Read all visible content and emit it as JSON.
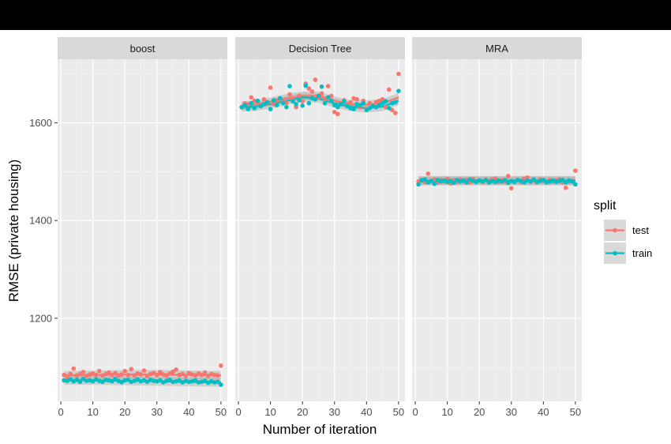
{
  "chart_data": {
    "type": "scatter",
    "xlabel": "Number of iteration",
    "ylabel": "RMSE (private housing)",
    "xlim": [
      -1,
      52
    ],
    "ylim": [
      1030,
      1730
    ],
    "x_ticks": [
      0,
      10,
      20,
      30,
      40,
      50
    ],
    "y_ticks": [
      1200,
      1400,
      1600
    ],
    "grid": true,
    "legend": {
      "title": "split",
      "position": "right",
      "entries": [
        {
          "name": "test",
          "color": "#F8766D"
        },
        {
          "name": "train",
          "color": "#00BFC4"
        }
      ]
    },
    "panels": [
      {
        "title": "boost",
        "series": [
          {
            "name": "test",
            "color": "#F8766D",
            "smooth": [
              [
                1,
                1083
              ],
              [
                10,
                1084
              ],
              [
                20,
                1085
              ],
              [
                30,
                1085
              ],
              [
                40,
                1084
              ],
              [
                50,
                1083
              ]
            ],
            "x": [
              1,
              2,
              3,
              4,
              5,
              6,
              7,
              8,
              9,
              10,
              11,
              12,
              13,
              14,
              15,
              16,
              17,
              18,
              19,
              20,
              21,
              22,
              23,
              24,
              25,
              26,
              27,
              28,
              29,
              30,
              31,
              32,
              33,
              34,
              35,
              36,
              37,
              38,
              39,
              40,
              41,
              42,
              43,
              44,
              45,
              46,
              47,
              48,
              49,
              50
            ],
            "y": [
              1084,
              1081,
              1086,
              1097,
              1083,
              1086,
              1090,
              1082,
              1085,
              1087,
              1084,
              1092,
              1083,
              1086,
              1089,
              1084,
              1088,
              1083,
              1085,
              1092,
              1084,
              1096,
              1083,
              1087,
              1085,
              1093,
              1082,
              1086,
              1088,
              1084,
              1090,
              1085,
              1083,
              1087,
              1091,
              1095,
              1084,
              1086,
              1082,
              1088,
              1085,
              1083,
              1087,
              1084,
              1089,
              1082,
              1086,
              1084,
              1083,
              1103
            ]
          },
          {
            "name": "train",
            "color": "#00BFC4",
            "smooth": [
              [
                1,
                1073
              ],
              [
                10,
                1073
              ],
              [
                20,
                1072
              ],
              [
                30,
                1071
              ],
              [
                40,
                1070
              ],
              [
                50,
                1069
              ]
            ],
            "x": [
              1,
              2,
              3,
              4,
              5,
              6,
              7,
              8,
              9,
              10,
              11,
              12,
              13,
              14,
              15,
              16,
              17,
              18,
              19,
              20,
              21,
              22,
              23,
              24,
              25,
              26,
              27,
              28,
              29,
              30,
              31,
              32,
              33,
              34,
              35,
              36,
              37,
              38,
              39,
              40,
              41,
              42,
              43,
              44,
              45,
              46,
              47,
              48,
              49,
              50
            ],
            "y": [
              1073,
              1072,
              1075,
              1071,
              1074,
              1070,
              1076,
              1072,
              1073,
              1071,
              1075,
              1072,
              1070,
              1074,
              1073,
              1071,
              1076,
              1072,
              1069,
              1073,
              1074,
              1070,
              1072,
              1075,
              1071,
              1073,
              1070,
              1074,
              1072,
              1071,
              1073,
              1069,
              1072,
              1074,
              1070,
              1071,
              1073,
              1069,
              1072,
              1070,
              1071,
              1073,
              1069,
              1070,
              1072,
              1068,
              1071,
              1069,
              1070,
              1064
            ]
          }
        ]
      },
      {
        "title": "Decision Tree",
        "series": [
          {
            "name": "test",
            "color": "#F8766D",
            "smooth": [
              [
                1,
                1635
              ],
              [
                5,
                1637
              ],
              [
                10,
                1643
              ],
              [
                15,
                1650
              ],
              [
                20,
                1655
              ],
              [
                25,
                1655
              ],
              [
                30,
                1645
              ],
              [
                35,
                1637
              ],
              [
                40,
                1637
              ],
              [
                45,
                1640
              ],
              [
                50,
                1652
              ]
            ],
            "x": [
              1,
              2,
              3,
              4,
              5,
              6,
              7,
              8,
              9,
              10,
              11,
              12,
              13,
              14,
              15,
              16,
              17,
              18,
              19,
              20,
              21,
              22,
              23,
              24,
              25,
              26,
              27,
              28,
              29,
              30,
              31,
              32,
              33,
              34,
              35,
              36,
              37,
              38,
              39,
              40,
              41,
              42,
              43,
              44,
              45,
              46,
              47,
              48,
              49,
              50
            ],
            "y": [
              1632,
              1640,
              1638,
              1652,
              1645,
              1642,
              1635,
              1648,
              1640,
              1672,
              1638,
              1646,
              1650,
              1643,
              1641,
              1658,
              1647,
              1632,
              1655,
              1644,
              1680,
              1670,
              1664,
              1688,
              1652,
              1660,
              1648,
              1675,
              1655,
              1622,
              1618,
              1640,
              1646,
              1638,
              1642,
              1650,
              1648,
              1632,
              1645,
              1628,
              1640,
              1636,
              1642,
              1645,
              1648,
              1632,
              1668,
              1626,
              1620,
              1700
            ]
          },
          {
            "name": "train",
            "color": "#00BFC4",
            "smooth": [
              [
                1,
                1632
              ],
              [
                5,
                1633
              ],
              [
                10,
                1638
              ],
              [
                15,
                1645
              ],
              [
                20,
                1652
              ],
              [
                25,
                1650
              ],
              [
                30,
                1640
              ],
              [
                35,
                1633
              ],
              [
                40,
                1630
              ],
              [
                45,
                1633
              ],
              [
                50,
                1645
              ]
            ],
            "x": [
              1,
              2,
              3,
              4,
              5,
              6,
              7,
              8,
              9,
              10,
              11,
              12,
              13,
              14,
              15,
              16,
              17,
              18,
              19,
              20,
              21,
              22,
              23,
              24,
              25,
              26,
              27,
              28,
              29,
              30,
              31,
              32,
              33,
              34,
              35,
              36,
              37,
              38,
              39,
              40,
              41,
              42,
              43,
              44,
              45,
              46,
              47,
              48,
              49,
              50
            ],
            "y": [
              1632,
              1636,
              1628,
              1640,
              1630,
              1645,
              1634,
              1638,
              1642,
              1628,
              1646,
              1636,
              1650,
              1640,
              1632,
              1675,
              1644,
              1638,
              1646,
              1635,
              1676,
              1640,
              1650,
              1648,
              1655,
              1674,
              1640,
              1652,
              1645,
              1636,
              1632,
              1638,
              1644,
              1634,
              1630,
              1628,
              1638,
              1636,
              1640,
              1626,
              1630,
              1634,
              1632,
              1636,
              1640,
              1644,
              1630,
              1640,
              1642,
              1665
            ]
          }
        ]
      },
      {
        "title": "MRA",
        "series": [
          {
            "name": "test",
            "color": "#F8766D",
            "smooth": [
              [
                1,
                1482
              ],
              [
                10,
                1482
              ],
              [
                20,
                1482
              ],
              [
                30,
                1482
              ],
              [
                40,
                1482
              ],
              [
                50,
                1482
              ]
            ],
            "x": [
              1,
              2,
              3,
              4,
              5,
              6,
              7,
              8,
              9,
              10,
              11,
              12,
              13,
              14,
              15,
              16,
              17,
              18,
              19,
              20,
              21,
              22,
              23,
              24,
              25,
              26,
              27,
              28,
              29,
              30,
              31,
              32,
              33,
              34,
              35,
              36,
              37,
              38,
              39,
              40,
              41,
              42,
              43,
              44,
              45,
              46,
              47,
              48,
              49,
              50
            ],
            "y": [
              1480,
              1483,
              1479,
              1496,
              1481,
              1484,
              1478,
              1483,
              1480,
              1485,
              1476,
              1482,
              1479,
              1484,
              1481,
              1483,
              1478,
              1485,
              1480,
              1482,
              1479,
              1483,
              1481,
              1484,
              1486,
              1479,
              1482,
              1480,
              1491,
              1466,
              1480,
              1483,
              1479,
              1486,
              1488,
              1480,
              1482,
              1478,
              1484,
              1481,
              1479,
              1483,
              1480,
              1482,
              1484,
              1478,
              1467,
              1480,
              1481,
              1502
            ]
          },
          {
            "name": "train",
            "color": "#00BFC4",
            "smooth": [
              [
                1,
                1481
              ],
              [
                10,
                1481
              ],
              [
                20,
                1481
              ],
              [
                30,
                1481
              ],
              [
                40,
                1481
              ],
              [
                50,
                1481
              ]
            ],
            "x": [
              1,
              2,
              3,
              4,
              5,
              6,
              7,
              8,
              9,
              10,
              11,
              12,
              13,
              14,
              15,
              16,
              17,
              18,
              19,
              20,
              21,
              22,
              23,
              24,
              25,
              26,
              27,
              28,
              29,
              30,
              31,
              32,
              33,
              34,
              35,
              36,
              37,
              38,
              39,
              40,
              41,
              42,
              43,
              44,
              45,
              46,
              47,
              48,
              49,
              50
            ],
            "y": [
              1474,
              1482,
              1484,
              1478,
              1481,
              1475,
              1483,
              1480,
              1482,
              1479,
              1481,
              1477,
              1483,
              1480,
              1482,
              1478,
              1484,
              1481,
              1479,
              1482,
              1480,
              1483,
              1478,
              1481,
              1479,
              1482,
              1480,
              1483,
              1477,
              1481,
              1479,
              1483,
              1481,
              1478,
              1482,
              1480,
              1484,
              1479,
              1481,
              1483,
              1478,
              1480,
              1482,
              1479,
              1481,
              1483,
              1478,
              1482,
              1480,
              1474
            ]
          }
        ]
      }
    ]
  }
}
